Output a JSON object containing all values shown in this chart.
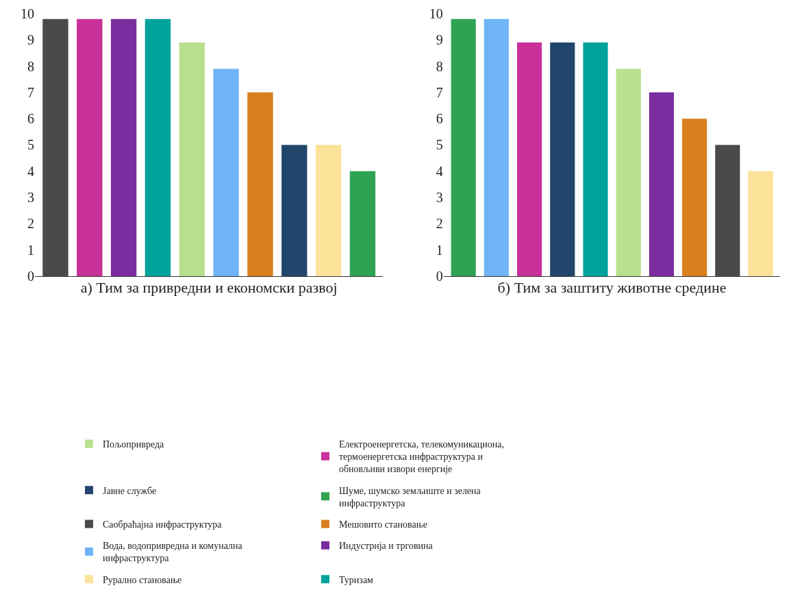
{
  "chart_data": [
    {
      "type": "bar",
      "xlabel": "а) Тим за привредни и економски развој",
      "categories": [
        null,
        null,
        null,
        null,
        null,
        null,
        null,
        null,
        null,
        null
      ],
      "ylim": [
        0,
        10
      ],
      "yticks": [
        0,
        1,
        2,
        3,
        4,
        5,
        6,
        7,
        8,
        9,
        10
      ],
      "tick_labels": "y",
      "legend": "bottom",
      "series": [
        {
          "name": "Пољопривреда",
          "color": "#b9e08f",
          "values": [
            null,
            null,
            null,
            null,
            8.9,
            null,
            null,
            null,
            null,
            null
          ]
        },
        {
          "name": "Електроенергетска, телекомуникациона, термоенергетска инфраструктура и обновљиви извори енергије",
          "color": "#c8309a",
          "values": [
            null,
            9.8,
            null,
            null,
            null,
            null,
            null,
            null,
            null,
            null
          ]
        },
        {
          "name": "Јавне службе",
          "color": "#22466b",
          "values": [
            null,
            null,
            null,
            null,
            null,
            null,
            null,
            5,
            null,
            null
          ]
        },
        {
          "name": "Шуме, шумско земљиште и зелена инфраструктура",
          "color": "#2fa354",
          "values": [
            null,
            null,
            null,
            null,
            null,
            null,
            null,
            null,
            null,
            4
          ]
        },
        {
          "name": "Саобраћајна инфраструктура",
          "color": "#4a4a4a",
          "values": [
            9.8,
            null,
            null,
            null,
            null,
            null,
            null,
            null,
            null,
            null
          ]
        },
        {
          "name": "Мешовито становање",
          "color": "#d97f1e",
          "values": [
            null,
            null,
            null,
            null,
            null,
            null,
            7,
            null,
            null,
            null
          ]
        },
        {
          "name": "Вода, водопривредна и комунална инфраструктура",
          "color": "#6eb4f7",
          "values": [
            null,
            null,
            null,
            null,
            null,
            7.9,
            null,
            null,
            null,
            null
          ]
        },
        {
          "name": "Индустрија и трговина",
          "color": "#7a2d9e",
          "values": [
            null,
            null,
            9.8,
            null,
            null,
            null,
            null,
            null,
            null,
            null
          ]
        },
        {
          "name": "Рурално становање",
          "color": "#fde29a",
          "values": [
            null,
            null,
            null,
            null,
            null,
            null,
            null,
            null,
            5,
            null
          ]
        },
        {
          "name": "Туризам",
          "color": "#00a29c",
          "values": [
            null,
            null,
            null,
            9.8,
            null,
            null,
            null,
            null,
            null,
            null
          ]
        }
      ]
    },
    {
      "type": "bar",
      "xlabel": "б) Тим за заштиту животне средине",
      "categories": [
        null,
        null,
        null,
        null,
        null,
        null,
        null,
        null,
        null,
        null
      ],
      "ylim": [
        0,
        10
      ],
      "yticks": [
        0,
        1,
        2,
        3,
        4,
        5,
        6,
        7,
        8,
        9,
        10
      ],
      "tick_labels": "y",
      "series": [
        {
          "color": "#b9e08f",
          "values": [
            null,
            null,
            null,
            null,
            null,
            7.9,
            null,
            null,
            null,
            null
          ]
        },
        {
          "color": "#c8309a",
          "values": [
            null,
            null,
            8.9,
            null,
            null,
            null,
            null,
            null,
            null,
            null
          ]
        },
        {
          "color": "#22466b",
          "values": [
            null,
            null,
            null,
            8.9,
            null,
            null,
            null,
            null,
            null,
            null
          ]
        },
        {
          "color": "#2fa354",
          "values": [
            9.8,
            null,
            null,
            null,
            null,
            null,
            null,
            null,
            null,
            null
          ]
        },
        {
          "color": "#4a4a4a",
          "values": [
            null,
            null,
            null,
            null,
            null,
            null,
            null,
            null,
            5,
            null
          ]
        },
        {
          "color": "#d97f1e",
          "values": [
            null,
            null,
            null,
            null,
            null,
            null,
            null,
            6,
            null,
            null
          ]
        },
        {
          "color": "#6eb4f7",
          "values": [
            null,
            9.8,
            null,
            null,
            null,
            null,
            null,
            null,
            null,
            null
          ]
        },
        {
          "color": "#7a2d9e",
          "values": [
            null,
            null,
            null,
            null,
            null,
            null,
            7,
            null,
            null,
            null
          ]
        },
        {
          "color": "#fde29a",
          "values": [
            null,
            null,
            null,
            null,
            null,
            null,
            null,
            null,
            null,
            4
          ]
        },
        {
          "color": "#00a29c",
          "values": [
            null,
            null,
            null,
            null,
            8.9,
            null,
            null,
            null,
            null,
            null
          ]
        }
      ]
    }
  ]
}
